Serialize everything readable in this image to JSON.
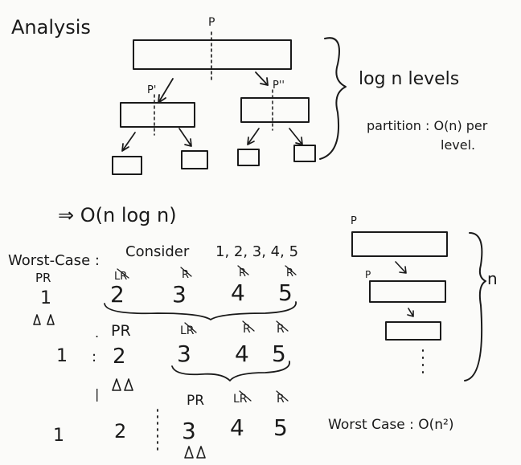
{
  "title": "Analysis",
  "tree": {
    "root_label": "P",
    "left_label": "P'",
    "right_label": "P''",
    "levels_note": "log n levels",
    "partition_note_1": "partition : O(n) per",
    "partition_note_2": "level."
  },
  "average_result": "⇒ O(n log n)",
  "worst_case": {
    "heading": "Worst-Case :",
    "consider_label": "Consider",
    "sequence": "1, 2, 3, 4, 5",
    "row1": {
      "tags": [
        "PR",
        "LR",
        "R",
        "R",
        "R"
      ],
      "values": [
        "1",
        "2",
        "3",
        "4",
        "5"
      ]
    },
    "row2": {
      "tags": [
        "PR",
        "LR",
        "R",
        "R"
      ],
      "values": [
        "1",
        "2",
        "3",
        "4",
        "5"
      ]
    },
    "row3": {
      "tags": [
        "PR",
        "LR",
        "R"
      ],
      "values": [
        "1",
        "2",
        "3",
        "4",
        "5"
      ]
    },
    "stack_root_label": "P",
    "stack_second_label": "P",
    "stack_depth_label": "n",
    "result": "Worst Case : O(n²)"
  }
}
